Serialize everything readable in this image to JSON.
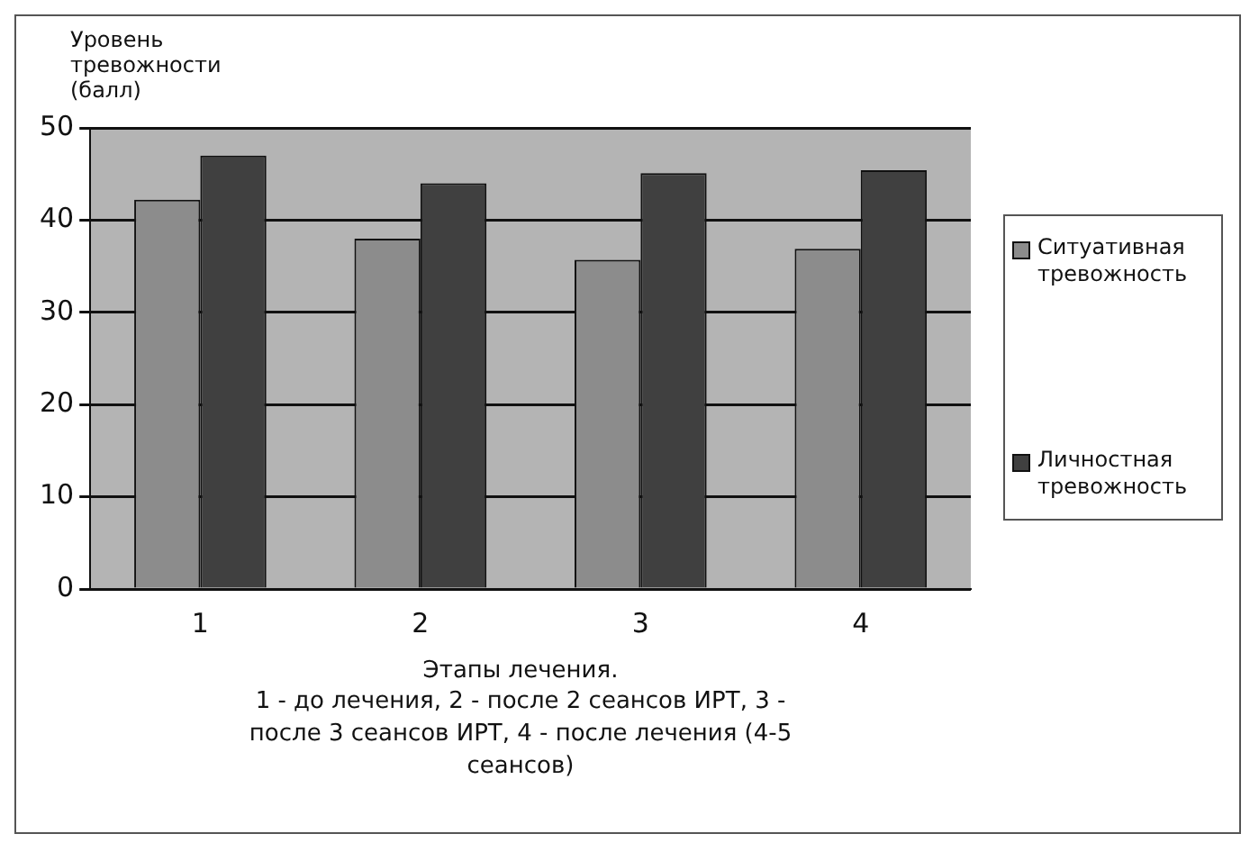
{
  "chart_data": {
    "type": "bar",
    "ylabel": "Уровень\nтревожности\n(балл)",
    "xlabel": "Этапы лечения.",
    "annotations": [
      "1 - до лечения, 2 - после 2 сеансов ИРТ, 3 -\nпосле 3 сеансов ИРТ, 4 - после лечения (4-5\nсеансов)"
    ],
    "categories": [
      "1",
      "2",
      "3",
      "4"
    ],
    "series": [
      {
        "name": "Ситуативная тревожность",
        "color": "#8c8c8c",
        "values": [
          42.2,
          38.0,
          35.7,
          36.9
        ]
      },
      {
        "name": "Личностная тревожность",
        "color": "#404040",
        "values": [
          47.0,
          44.0,
          45.1,
          45.4
        ]
      }
    ],
    "ylim": [
      0,
      50
    ],
    "yticks": [
      0,
      10,
      20,
      30,
      40,
      50
    ],
    "grid": "y",
    "legend": "right"
  }
}
